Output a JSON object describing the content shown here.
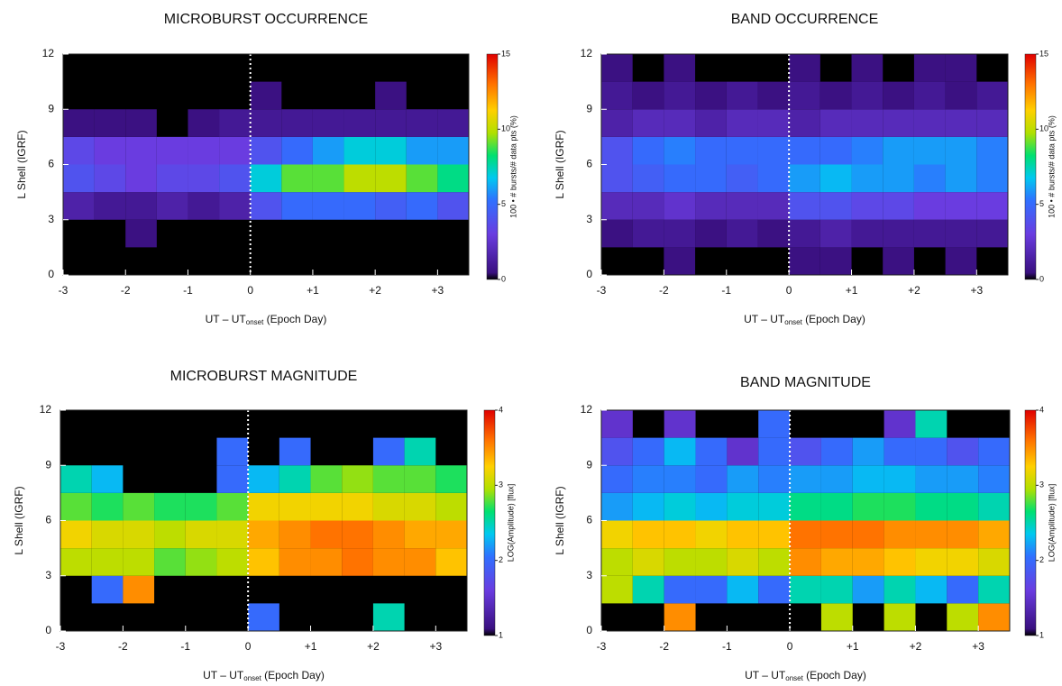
{
  "chart_data": [
    {
      "type": "heatmap",
      "title": "MICROBURST OCCURRENCE",
      "xlabel": [
        "UT – UT",
        "onset",
        " (Epoch Day)"
      ],
      "ylabel": "L Shell (IGRF)",
      "colorbar_label": "100 • # bursts/# data pts (%)",
      "xlim": [
        -3,
        3.5
      ],
      "xticks": [
        -3,
        -2,
        -1,
        0,
        {
          "value": 1,
          "label": "+1"
        },
        {
          "value": 2,
          "label": "+2"
        },
        {
          "value": 3,
          "label": "+3"
        }
      ],
      "ylim": [
        0,
        12
      ],
      "yticks": [
        0,
        3,
        6,
        9,
        12
      ],
      "clim": [
        0,
        15
      ],
      "cticks": [
        0,
        5,
        10,
        15
      ],
      "onset_line": 0,
      "xbins": [
        -3,
        -2.5,
        -2,
        -1.5,
        -1,
        -0.5,
        0,
        0.5,
        1,
        1.5,
        2,
        2.5,
        3,
        3.5
      ],
      "ybins": [
        0,
        1.5,
        3,
        4.5,
        6,
        7.5,
        9,
        10.5,
        12
      ],
      "values": [
        [
          null,
          null,
          null,
          null,
          null,
          null,
          null,
          null,
          null,
          null,
          null,
          null,
          null
        ],
        [
          null,
          null,
          0.5,
          null,
          null,
          null,
          null,
          null,
          null,
          null,
          null,
          null,
          null
        ],
        [
          1.5,
          1,
          1,
          1.5,
          1,
          1.5,
          4,
          5,
          5,
          5,
          4.5,
          5,
          4
        ],
        [
          4,
          3.5,
          3,
          3.5,
          3.5,
          4,
          7,
          9,
          9,
          10,
          10,
          9,
          8
        ],
        [
          3.5,
          3,
          3,
          3,
          3,
          3,
          4,
          5,
          6,
          7,
          7,
          6,
          6
        ],
        [
          0.5,
          0.5,
          0.5,
          null,
          0.5,
          1,
          1,
          1,
          1,
          1,
          1,
          1,
          1
        ],
        [
          null,
          null,
          null,
          null,
          null,
          null,
          0.5,
          null,
          null,
          null,
          0.5,
          null,
          null
        ],
        [
          null,
          null,
          null,
          null,
          null,
          null,
          null,
          null,
          null,
          null,
          null,
          null,
          null
        ]
      ]
    },
    {
      "type": "heatmap",
      "title": "BAND OCCURRENCE",
      "xlabel": [
        "UT – UT",
        "onset",
        " (Epoch Day)"
      ],
      "ylabel": "L Shell (IGRF)",
      "colorbar_label": "100 • # bursts/# data pts (%)",
      "xlim": [
        -3,
        3.5
      ],
      "xticks": [
        -3,
        -2,
        -1,
        0,
        {
          "value": 1,
          "label": "+1"
        },
        {
          "value": 2,
          "label": "+2"
        },
        {
          "value": 3,
          "label": "+3"
        }
      ],
      "ylim": [
        0,
        12
      ],
      "yticks": [
        0,
        3,
        6,
        9,
        12
      ],
      "clim": [
        0,
        15
      ],
      "cticks": [
        0,
        5,
        10,
        15
      ],
      "onset_line": 0,
      "xbins": [
        -3,
        -2.5,
        -2,
        -1.5,
        -1,
        -0.5,
        0,
        0.5,
        1,
        1.5,
        2,
        2.5,
        3,
        3.5
      ],
      "ybins": [
        0,
        1.5,
        3,
        4.5,
        6,
        7.5,
        9,
        10.5,
        12
      ],
      "values": [
        [
          null,
          null,
          0.5,
          null,
          null,
          null,
          0.5,
          0.5,
          null,
          0.5,
          null,
          0.5,
          null
        ],
        [
          0.5,
          1,
          1,
          0.5,
          1,
          0.5,
          1,
          1.5,
          1,
          1,
          1,
          1,
          1
        ],
        [
          2,
          2,
          2.5,
          2,
          2,
          2,
          4,
          4,
          3.5,
          3.5,
          3,
          3,
          3
        ],
        [
          4,
          4.5,
          5,
          5,
          4.5,
          5,
          6,
          6.5,
          6,
          6,
          5.5,
          6,
          5.5
        ],
        [
          4,
          5,
          5.5,
          5,
          5,
          5,
          5,
          5,
          5.5,
          6,
          6,
          6,
          5.5
        ],
        [
          1.5,
          2,
          2,
          1.5,
          2,
          2,
          1.5,
          2,
          2,
          2,
          2,
          2,
          2
        ],
        [
          1,
          0.5,
          1,
          0.5,
          1,
          0.5,
          1,
          0.5,
          1,
          0.5,
          1,
          0.5,
          1
        ],
        [
          0.5,
          null,
          0.5,
          null,
          null,
          null,
          0.5,
          null,
          0.5,
          null,
          0.5,
          0.5,
          null
        ]
      ]
    },
    {
      "type": "heatmap",
      "title": "MICROBURST MAGNITUDE",
      "xlabel": [
        "UT – UT",
        "onset",
        " (Epoch Day)"
      ],
      "ylabel": "L Shell (IGRF)",
      "colorbar_label": "LOG(Amplitude) [flux]",
      "xlim": [
        -3,
        3.5
      ],
      "xticks": [
        -3,
        -2,
        -1,
        0,
        {
          "value": 1,
          "label": "+1"
        },
        {
          "value": 2,
          "label": "+2"
        },
        {
          "value": 3,
          "label": "+3"
        }
      ],
      "ylim": [
        0,
        12
      ],
      "yticks": [
        0,
        3,
        6,
        9,
        12
      ],
      "clim": [
        1,
        4
      ],
      "cticks": [
        1,
        2,
        3,
        4
      ],
      "onset_line": 0,
      "xbins": [
        -3,
        -2.5,
        -2,
        -1.5,
        -1,
        -0.5,
        0,
        0.5,
        1,
        1.5,
        2,
        2.5,
        3,
        3.5
      ],
      "ybins": [
        0,
        1.5,
        3,
        4.5,
        6,
        7.5,
        9,
        10.5,
        12
      ],
      "values": [
        [
          null,
          null,
          null,
          null,
          null,
          null,
          2,
          null,
          null,
          null,
          2.5,
          null,
          null
        ],
        [
          null,
          2,
          3.5,
          null,
          null,
          null,
          null,
          null,
          null,
          null,
          null,
          null,
          null
        ],
        [
          3,
          3,
          3,
          2.8,
          2.9,
          3,
          3.3,
          3.5,
          3.5,
          3.6,
          3.5,
          3.5,
          3.3
        ],
        [
          3.2,
          3.1,
          3.1,
          3,
          3.1,
          3.1,
          3.4,
          3.5,
          3.6,
          3.6,
          3.5,
          3.4,
          3.4
        ],
        [
          2.8,
          2.7,
          2.8,
          2.7,
          2.7,
          2.8,
          3.2,
          3.2,
          3.2,
          3.2,
          3.1,
          3.1,
          3
        ],
        [
          2.5,
          2.3,
          null,
          null,
          null,
          2,
          2.3,
          2.5,
          2.8,
          2.9,
          2.8,
          2.8,
          2.7
        ],
        [
          null,
          null,
          null,
          null,
          null,
          2,
          null,
          2,
          null,
          null,
          2,
          2.5,
          null
        ],
        [
          null,
          null,
          null,
          null,
          null,
          null,
          null,
          null,
          null,
          null,
          null,
          null,
          null
        ]
      ]
    },
    {
      "type": "heatmap",
      "title": "BAND MAGNITUDE",
      "xlabel": [
        "UT – UT",
        "onset",
        " (Epoch Day)"
      ],
      "ylabel": "L Shell (IGRF)",
      "colorbar_label": "LOG(Amplitude) [flux]",
      "xlim": [
        -3,
        3.5
      ],
      "xticks": [
        -3,
        -2,
        -1,
        0,
        {
          "value": 1,
          "label": "+1"
        },
        {
          "value": 2,
          "label": "+2"
        },
        {
          "value": 3,
          "label": "+3"
        }
      ],
      "ylim": [
        0,
        12
      ],
      "yticks": [
        0,
        3,
        6,
        9,
        12
      ],
      "clim": [
        1,
        4
      ],
      "cticks": [
        1,
        2,
        3,
        4
      ],
      "onset_line": 0,
      "xbins": [
        -3,
        -2.5,
        -2,
        -1.5,
        -1,
        -0.5,
        0,
        0.5,
        1,
        1.5,
        2,
        2.5,
        3,
        3.5
      ],
      "ybins": [
        0,
        1.5,
        3,
        4.5,
        6,
        7.5,
        9,
        10.5,
        12
      ],
      "values": [
        [
          null,
          null,
          3.5,
          null,
          null,
          null,
          null,
          3,
          null,
          3,
          null,
          3,
          3.5
        ],
        [
          3,
          2.5,
          2,
          2,
          2.3,
          2,
          2.5,
          2.5,
          2.2,
          2.5,
          2.3,
          2,
          2.5
        ],
        [
          3,
          3.1,
          3,
          3,
          3.1,
          3,
          3.5,
          3.4,
          3.4,
          3.3,
          3.2,
          3.2,
          3.1
        ],
        [
          3.2,
          3.3,
          3.3,
          3.2,
          3.3,
          3.3,
          3.6,
          3.6,
          3.6,
          3.5,
          3.5,
          3.5,
          3.4
        ],
        [
          2.2,
          2.3,
          2.4,
          2.3,
          2.4,
          2.4,
          2.6,
          2.6,
          2.7,
          2.7,
          2.6,
          2.6,
          2.5
        ],
        [
          2,
          2.1,
          2.1,
          2,
          2.2,
          2.1,
          2.2,
          2.2,
          2.3,
          2.3,
          2.2,
          2.2,
          2.1
        ],
        [
          1.8,
          2,
          2.3,
          2,
          1.5,
          2,
          1.8,
          2,
          2.2,
          2,
          2,
          1.8,
          2
        ],
        [
          1.5,
          null,
          1.5,
          null,
          null,
          2,
          null,
          null,
          null,
          1.5,
          2.5,
          null,
          null
        ]
      ]
    }
  ]
}
